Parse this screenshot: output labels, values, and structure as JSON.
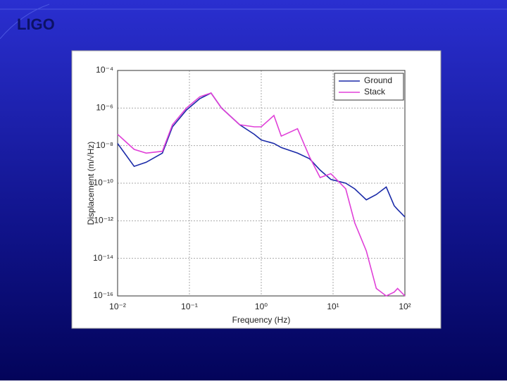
{
  "header": {
    "logo": "LIGO"
  },
  "chart_data": {
    "type": "line",
    "x_label": "Frequency (Hz)",
    "y_label": "Displacement (m/√Hz)",
    "x": [
      0.01,
      0.017,
      0.025,
      0.042,
      0.058,
      0.091,
      0.14,
      0.2,
      0.28,
      0.5,
      0.8,
      1,
      1.5,
      1.9,
      3.2,
      4.7,
      6.6,
      9.3,
      15,
      20,
      29,
      40,
      55,
      71,
      79,
      100
    ],
    "series": [
      {
        "name": "Ground",
        "color": "#1a2aa8",
        "values": [
          1.3e-08,
          7.9e-10,
          1.3e-09,
          4e-09,
          1e-07,
          7.9e-07,
          3.2e-06,
          6.3e-06,
          1e-06,
          1.3e-07,
          4e-08,
          2e-08,
          1.3e-08,
          7.9e-09,
          4e-09,
          2e-09,
          5e-10,
          1.6e-10,
          1e-10,
          5e-11,
          1.3e-11,
          2.5e-11,
          6.3e-11,
          6.3e-12,
          4e-12,
          1.6e-12
        ]
      },
      {
        "name": "Stack",
        "color": "#e040d8",
        "values": [
          4e-08,
          6.3e-09,
          4e-09,
          5e-09,
          1.3e-07,
          1e-06,
          4e-06,
          6.3e-06,
          1e-06,
          1.3e-07,
          1e-07,
          1e-07,
          4e-07,
          3.2e-08,
          7.9e-08,
          2.5e-09,
          2e-10,
          3.2e-10,
          5e-11,
          7.9e-13,
          2.5e-14,
          2.5e-16,
          1e-16,
          1.6e-16,
          2.5e-16,
          1e-16
        ]
      }
    ],
    "xlim": [
      0.01,
      100
    ],
    "ylim": [
      1e-16,
      0.0001
    ],
    "xticks": [
      {
        "value": 0.01,
        "label": "10⁻²"
      },
      {
        "value": 0.1,
        "label": "10⁻¹"
      },
      {
        "value": 1,
        "label": "10⁰"
      },
      {
        "value": 10,
        "label": "10¹"
      },
      {
        "value": 100,
        "label": "10²"
      }
    ],
    "yticks": [
      {
        "value": 0.0001,
        "label": "10⁻⁴"
      },
      {
        "value": 1e-06,
        "label": "10⁻⁶"
      },
      {
        "value": 1e-08,
        "label": "10⁻⁸"
      },
      {
        "value": 1e-10,
        "label": "10⁻¹⁰"
      },
      {
        "value": 1e-12,
        "label": "10⁻¹²"
      },
      {
        "value": 1e-14,
        "label": "10⁻¹⁴"
      },
      {
        "value": 1e-16,
        "label": "10⁻¹⁶"
      }
    ],
    "log_x": true,
    "log_y": true,
    "grid": true,
    "legend": "top-right"
  }
}
